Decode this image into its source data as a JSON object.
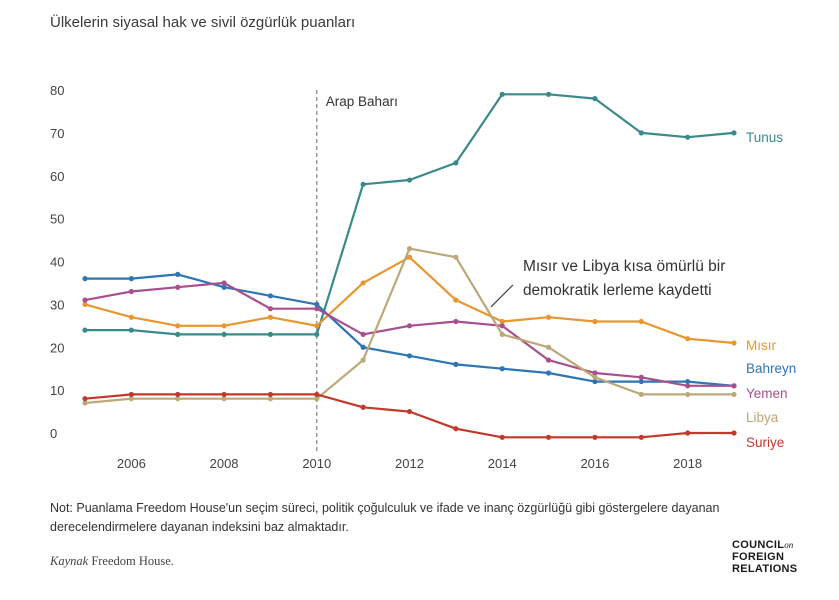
{
  "title": "Ülkelerin siyasal hak ve sivil özgürlük puanları",
  "note": "Not: Puanlama Freedom House'un seçim süreci, politik çoğulculuk ve ifade ve inanç özgürlüğü gibi göstergelere dayanan derecelendirmelere dayanan indeksini baz almaktadır.",
  "source": {
    "label": "Kaynak",
    "text": "Freedom House."
  },
  "publisher": {
    "line1": "COUNCIL",
    "on": "on",
    "line2": "FOREIGN",
    "line3": "RELATIONS"
  },
  "chart_data": {
    "type": "line",
    "title": "Ülkelerin siyasal hak ve sivil özgürlük puanları",
    "x": [
      2005,
      2006,
      2007,
      2008,
      2009,
      2010,
      2011,
      2012,
      2013,
      2014,
      2015,
      2016,
      2017,
      2018,
      2019
    ],
    "x_ticks": [
      2006,
      2008,
      2010,
      2012,
      2014,
      2016,
      2018
    ],
    "x_tick_labels": [
      "2006",
      "2008",
      "2010",
      "2012",
      "2014",
      "2016",
      "2018"
    ],
    "xlim": [
      2005,
      2019
    ],
    "y_ticks": [
      0,
      10,
      20,
      30,
      40,
      50,
      60,
      70,
      80
    ],
    "y_tick_labels": [
      "0",
      "10",
      "20",
      "30",
      "40",
      "50",
      "60",
      "70",
      "80"
    ],
    "ylim": [
      0,
      80
    ],
    "grid": false,
    "xlabel": "",
    "ylabel": "",
    "legend": "direct labels at right end of lines",
    "series": [
      {
        "name": "Tunus",
        "color": "#3a8a8c",
        "values": [
          24,
          24,
          23,
          23,
          23,
          23,
          58,
          59,
          63,
          79,
          79,
          78,
          70,
          69,
          70
        ]
      },
      {
        "name": "Mısır",
        "color": "#e8962e",
        "values": [
          30,
          27,
          25,
          25,
          27,
          25,
          35,
          41,
          31,
          26,
          27,
          26,
          26,
          22,
          21
        ]
      },
      {
        "name": "Bahreyn",
        "color": "#2e75b6",
        "values": [
          36,
          36,
          37,
          34,
          32,
          30,
          20,
          18,
          16,
          15,
          14,
          12,
          12,
          12,
          11
        ]
      },
      {
        "name": "Yemen",
        "color": "#a8508f",
        "values": [
          31,
          33,
          34,
          35,
          29,
          29,
          23,
          25,
          26,
          25,
          17,
          14,
          13,
          11,
          11
        ]
      },
      {
        "name": "Libya",
        "color": "#bca878",
        "values": [
          7,
          8,
          8,
          8,
          8,
          8,
          17,
          43,
          41,
          23,
          20,
          13,
          9,
          9,
          9
        ]
      },
      {
        "name": "Suriye",
        "color": "#c0392b",
        "values": [
          8,
          9,
          9,
          9,
          9,
          9,
          6,
          5,
          1,
          -1,
          -1,
          -1,
          -1,
          0,
          0
        ]
      }
    ],
    "annotations": [
      {
        "text": "Arap Baharı",
        "x": 2010,
        "kind": "vertical-dashed-line"
      },
      {
        "lines": [
          "Mısır ve Libya kısa ömürlü bir",
          "demokratik lerleme kaydetti"
        ],
        "x": 2013.8,
        "y": 35,
        "kind": "callout"
      }
    ]
  }
}
